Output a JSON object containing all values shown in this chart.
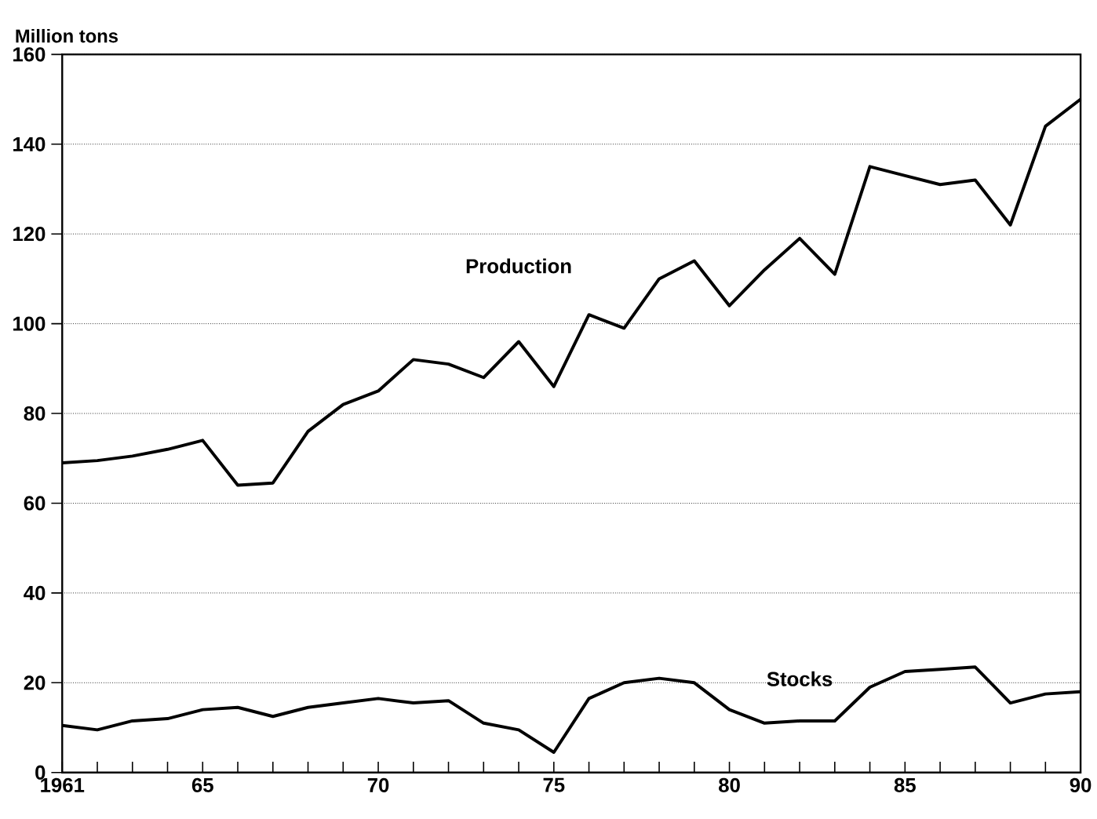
{
  "chart_data": {
    "type": "line",
    "ylabel": "Million tons",
    "x": [
      1961,
      1962,
      1963,
      1964,
      1965,
      1966,
      1967,
      1968,
      1969,
      1970,
      1971,
      1972,
      1973,
      1974,
      1975,
      1976,
      1977,
      1978,
      1979,
      1980,
      1981,
      1982,
      1983,
      1984,
      1985,
      1986,
      1987,
      1988,
      1989,
      1990
    ],
    "series": [
      {
        "name": "Production",
        "color": "#000000",
        "values": [
          69,
          69.5,
          70.5,
          72,
          74,
          64,
          64.5,
          76,
          82,
          85,
          92,
          91,
          88,
          96,
          86,
          102,
          99,
          110,
          114,
          104,
          112,
          119,
          111,
          135,
          133,
          131,
          132,
          122,
          144,
          150
        ]
      },
      {
        "name": "Stocks",
        "color": "#000000",
        "values": [
          10.5,
          9.5,
          11.5,
          12,
          14,
          14.5,
          12.5,
          14.5,
          15.5,
          16.5,
          15.5,
          16,
          11,
          9.5,
          4.5,
          16.5,
          20,
          21,
          20,
          14,
          11,
          11.5,
          11.5,
          19,
          22.5,
          23,
          23.5,
          15.5,
          17.5,
          18
        ]
      }
    ],
    "xlim": [
      1961,
      1990
    ],
    "ylim": [
      0,
      160
    ],
    "xticks": [
      {
        "value": 1961,
        "label": "1961"
      },
      {
        "value": 1962,
        "label": null
      },
      {
        "value": 1963,
        "label": null
      },
      {
        "value": 1964,
        "label": null
      },
      {
        "value": 1965,
        "label": "65"
      },
      {
        "value": 1966,
        "label": null
      },
      {
        "value": 1967,
        "label": null
      },
      {
        "value": 1968,
        "label": null
      },
      {
        "value": 1969,
        "label": null
      },
      {
        "value": 1970,
        "label": "70"
      },
      {
        "value": 1971,
        "label": null
      },
      {
        "value": 1972,
        "label": null
      },
      {
        "value": 1973,
        "label": null
      },
      {
        "value": 1974,
        "label": null
      },
      {
        "value": 1975,
        "label": "75"
      },
      {
        "value": 1976,
        "label": null
      },
      {
        "value": 1977,
        "label": null
      },
      {
        "value": 1978,
        "label": null
      },
      {
        "value": 1979,
        "label": null
      },
      {
        "value": 1980,
        "label": "80"
      },
      {
        "value": 1981,
        "label": null
      },
      {
        "value": 1982,
        "label": null
      },
      {
        "value": 1983,
        "label": null
      },
      {
        "value": 1984,
        "label": null
      },
      {
        "value": 1985,
        "label": "85"
      },
      {
        "value": 1986,
        "label": null
      },
      {
        "value": 1987,
        "label": null
      },
      {
        "value": 1988,
        "label": null
      },
      {
        "value": 1989,
        "label": null
      },
      {
        "value": 1990,
        "label": "90"
      }
    ],
    "yticks": [
      0,
      20,
      40,
      60,
      80,
      100,
      120,
      140,
      160
    ],
    "grid": "y",
    "legend": false,
    "marker": "none",
    "line_style": "solid"
  }
}
